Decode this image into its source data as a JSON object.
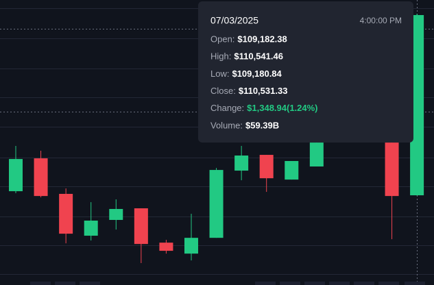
{
  "chart_data": {
    "type": "candlestick",
    "up_color": "#22c983",
    "down_color": "#f0434f",
    "ylim": [
      108511,
      110644
    ],
    "candles": {
      "open": [
        109213,
        109459,
        109193,
        108880,
        108998,
        109085,
        108828,
        108746,
        108864,
        109367,
        109485,
        109300,
        109398,
        null,
        null,
        109577,
        109182.38
      ],
      "high": [
        109552,
        109516,
        109234,
        109131,
        109152,
        109085,
        108849,
        109044,
        109387,
        109552,
        109485,
        109439,
        109577,
        null,
        null,
        109577,
        110541.46
      ],
      "low": [
        109198,
        109167,
        108823,
        108844,
        108926,
        108675,
        108746,
        108695,
        108864,
        109295,
        109208,
        109300,
        109398,
        null,
        null,
        108854,
        109180.84
      ],
      "close": [
        109454,
        109177,
        108895,
        108993,
        109080,
        108818,
        108767,
        108864,
        109372,
        109480,
        109310,
        109439,
        109577,
        null,
        null,
        109177,
        110531.33
      ]
    },
    "tooltip": {
      "date": "07/03/2025",
      "time": "4:00:00 PM",
      "rows": [
        {
          "label": "Open:",
          "value": "$109,182.38"
        },
        {
          "label": "High:",
          "value": "$110,541.46"
        },
        {
          "label": "Low:",
          "value": "$109,180.84"
        },
        {
          "label": "Close:",
          "value": "$110,531.33"
        },
        {
          "label": "Change:",
          "value": "$1,348.94(1.24%)"
        },
        {
          "label": "Volume:",
          "value": "$59.39B"
        }
      ]
    }
  }
}
